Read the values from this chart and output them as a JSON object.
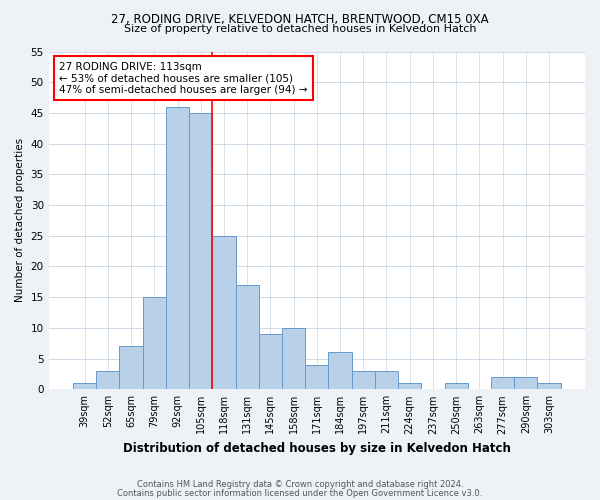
{
  "title1": "27, RODING DRIVE, KELVEDON HATCH, BRENTWOOD, CM15 0XA",
  "title2": "Size of property relative to detached houses in Kelvedon Hatch",
  "xlabel": "Distribution of detached houses by size in Kelvedon Hatch",
  "ylabel": "Number of detached properties",
  "categories": [
    "39sqm",
    "52sqm",
    "65sqm",
    "79sqm",
    "92sqm",
    "105sqm",
    "118sqm",
    "131sqm",
    "145sqm",
    "158sqm",
    "171sqm",
    "184sqm",
    "197sqm",
    "211sqm",
    "224sqm",
    "237sqm",
    "250sqm",
    "263sqm",
    "277sqm",
    "290sqm",
    "303sqm"
  ],
  "values": [
    1,
    3,
    7,
    15,
    46,
    45,
    25,
    17,
    9,
    10,
    4,
    6,
    3,
    3,
    1,
    0,
    1,
    0,
    2,
    2,
    1
  ],
  "bar_color": "#b8d0e8",
  "bar_edge_color": "#6699cc",
  "property_line_x": 5.5,
  "annotation_text": "27 RODING DRIVE: 113sqm\n← 53% of detached houses are smaller (105)\n47% of semi-detached houses are larger (94) →",
  "annotation_box_color": "white",
  "annotation_box_edge_color": "red",
  "vline_color": "red",
  "ylim": [
    0,
    55
  ],
  "yticks": [
    0,
    5,
    10,
    15,
    20,
    25,
    30,
    35,
    40,
    45,
    50,
    55
  ],
  "footnote1": "Contains HM Land Registry data © Crown copyright and database right 2024.",
  "footnote2": "Contains public sector information licensed under the Open Government Licence v3.0.",
  "bg_color": "#eef2f7",
  "plot_bg_color": "#ffffff",
  "grid_color": "#c8d4e4"
}
